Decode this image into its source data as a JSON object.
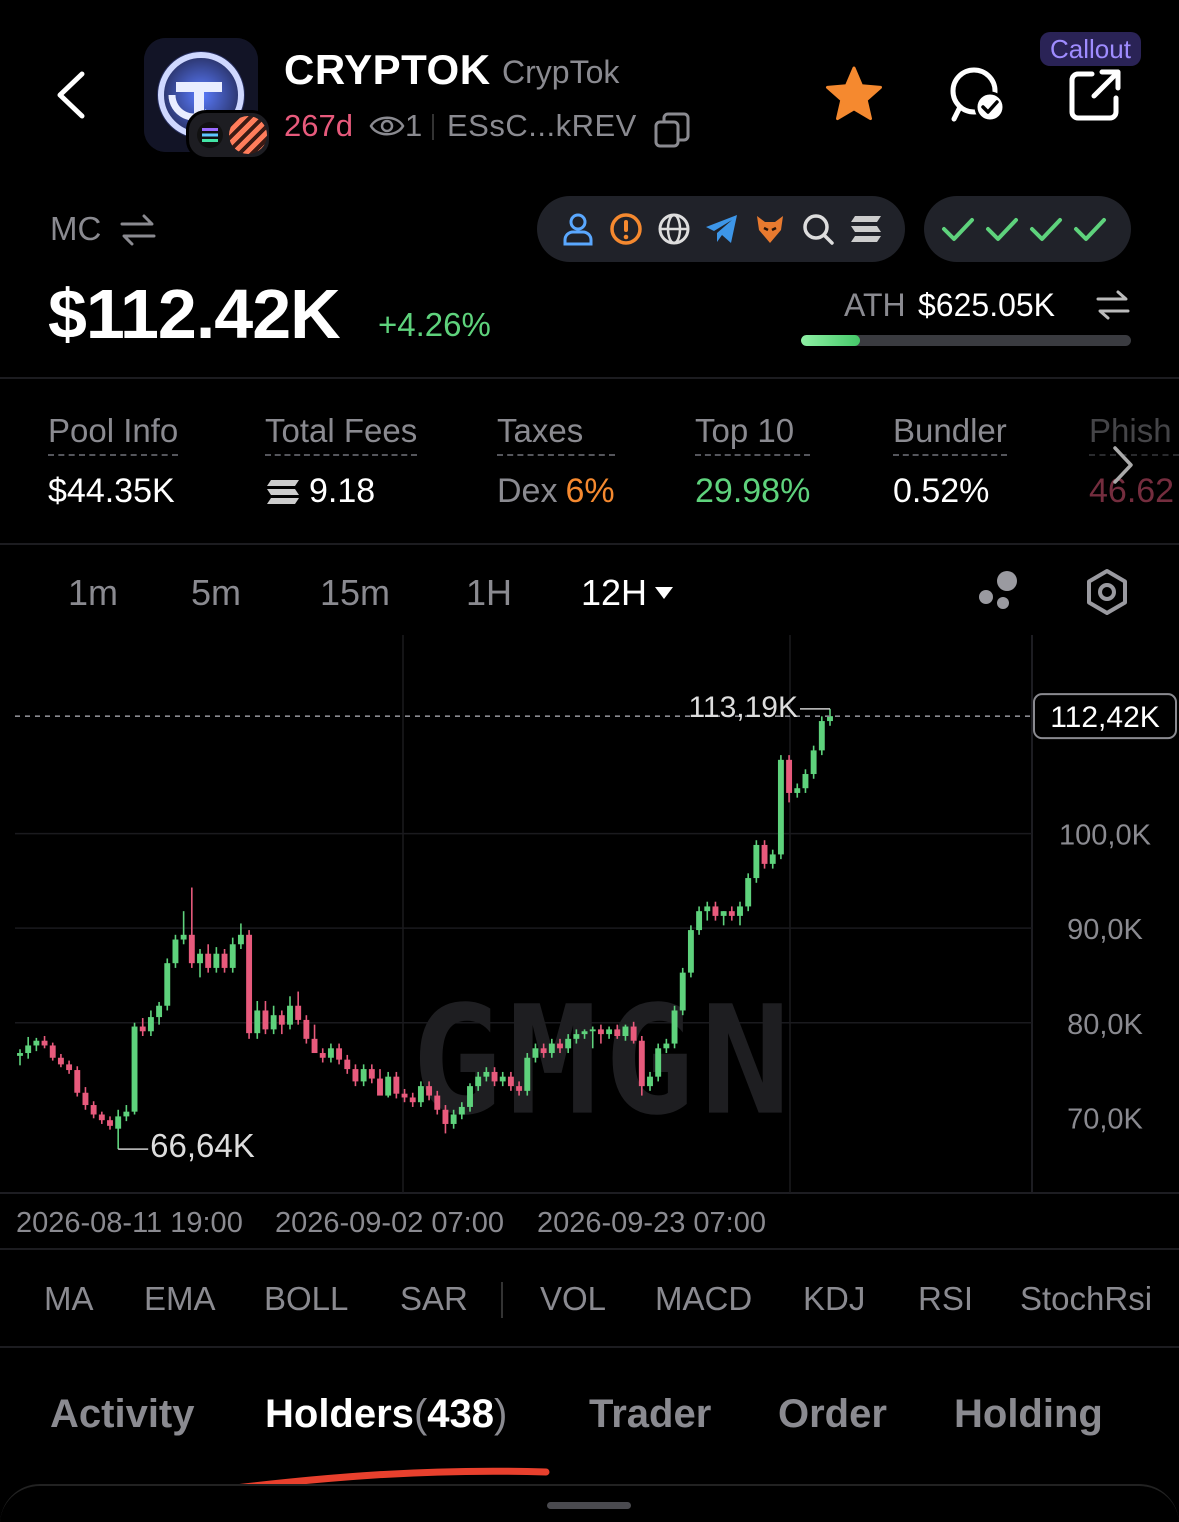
{
  "header": {
    "token_name": "CRYPTOK",
    "token_sub": "CrypTok",
    "age": "267d",
    "watch_count": "1",
    "address": "ESsC...kREV",
    "callout_label": "Callout"
  },
  "market": {
    "mc_label": "MC",
    "mc_value": "$112.42K",
    "mc_change": "+4.26%",
    "ath_label": "ATH",
    "ath_value": "$625.05K",
    "ath_progress": 0.18,
    "checks": "✓✓✓✓"
  },
  "social_icons": [
    "user-icon",
    "alert-icon",
    "globe-icon",
    "telegram-icon",
    "fox-icon",
    "search-icon",
    "solana-icon"
  ],
  "stats": [
    {
      "label": "Pool Info",
      "value": "$44.35K"
    },
    {
      "label": "Total Fees",
      "value": "9.18"
    },
    {
      "label": "Taxes",
      "value_prefix": "Dex",
      "value": "6%"
    },
    {
      "label": "Top 10",
      "value": "29.98%"
    },
    {
      "label": "Bundler",
      "value": "0.52%"
    },
    {
      "label": "Phish",
      "value": "46.62"
    }
  ],
  "timeframes": [
    "1m",
    "5m",
    "15m",
    "1H",
    "12H"
  ],
  "active_timeframe": "12H",
  "chart_data": {
    "type": "candlestick",
    "watermark": "GMGN",
    "y_ticks": [
      "100,0K",
      "90,0K",
      "80,0K",
      "70,0K"
    ],
    "x_ticks": [
      "2026-08-11 19:00",
      "2026-09-02 07:00",
      "2026-09-23 07:00"
    ],
    "current_price_label": "112,42K",
    "high_label": "113,19K",
    "low_label": "66,64K",
    "ylim": [
      62,
      121
    ],
    "candles": [
      [
        76.5,
        77.2,
        75.5,
        76.8
      ],
      [
        76.8,
        78.5,
        76.2,
        77.6
      ],
      [
        77.6,
        78.4,
        77.0,
        78.1
      ],
      [
        78.1,
        78.6,
        77.3,
        77.6
      ],
      [
        77.6,
        77.9,
        76.0,
        76.3
      ],
      [
        76.3,
        76.7,
        75.3,
        75.6
      ],
      [
        75.6,
        76.0,
        74.6,
        75.0
      ],
      [
        75.0,
        75.4,
        72.2,
        72.6
      ],
      [
        72.6,
        73.2,
        70.8,
        71.3
      ],
      [
        71.3,
        71.7,
        69.9,
        70.3
      ],
      [
        70.3,
        70.6,
        69.3,
        69.7
      ],
      [
        69.7,
        70.1,
        68.7,
        69.1
      ],
      [
        68.8,
        70.8,
        66.64,
        70.1
      ],
      [
        70.1,
        71.3,
        69.6,
        70.6
      ],
      [
        70.6,
        80.0,
        70.3,
        79.6
      ],
      [
        79.6,
        80.5,
        78.6,
        79.1
      ],
      [
        79.1,
        81.3,
        78.6,
        80.6
      ],
      [
        80.6,
        82.2,
        79.8,
        81.8
      ],
      [
        81.8,
        86.8,
        81.3,
        86.3
      ],
      [
        86.3,
        89.3,
        85.8,
        88.8
      ],
      [
        88.8,
        91.8,
        88.3,
        89.3
      ],
      [
        89.3,
        94.3,
        85.8,
        86.3
      ],
      [
        86.3,
        87.8,
        84.8,
        87.3
      ],
      [
        87.3,
        88.3,
        85.3,
        85.8
      ],
      [
        85.8,
        88.0,
        85.3,
        87.3
      ],
      [
        87.3,
        87.8,
        85.3,
        85.8
      ],
      [
        85.8,
        89.0,
        85.3,
        88.3
      ],
      [
        88.3,
        90.5,
        87.8,
        89.3
      ],
      [
        89.3,
        89.8,
        78.3,
        78.9
      ],
      [
        78.9,
        82.3,
        78.3,
        81.3
      ],
      [
        81.3,
        82.3,
        78.8,
        79.3
      ],
      [
        79.3,
        81.8,
        78.8,
        80.8
      ],
      [
        80.8,
        81.3,
        78.8,
        79.8
      ],
      [
        79.8,
        82.8,
        79.3,
        81.8
      ],
      [
        81.8,
        83.3,
        79.8,
        80.3
      ],
      [
        80.3,
        80.8,
        77.8,
        78.3
      ],
      [
        78.3,
        79.8,
        77.3,
        76.8
      ],
      [
        76.8,
        77.3,
        75.8,
        76.3
      ],
      [
        76.3,
        77.8,
        75.8,
        77.3
      ],
      [
        77.3,
        77.8,
        75.6,
        76.1
      ],
      [
        76.1,
        76.6,
        74.6,
        75.1
      ],
      [
        75.1,
        75.6,
        73.3,
        73.8
      ],
      [
        73.8,
        75.6,
        73.3,
        75.1
      ],
      [
        75.1,
        75.6,
        73.6,
        74.1
      ],
      [
        74.1,
        75.1,
        72.8,
        72.3
      ],
      [
        72.3,
        74.8,
        72.1,
        74.3
      ],
      [
        74.3,
        74.8,
        72.0,
        72.5
      ],
      [
        72.5,
        73.0,
        71.6,
        72.1
      ],
      [
        72.1,
        72.6,
        71.1,
        71.6
      ],
      [
        71.6,
        73.8,
        71.1,
        73.3
      ],
      [
        73.3,
        73.8,
        71.8,
        72.3
      ],
      [
        72.3,
        72.8,
        70.3,
        70.8
      ],
      [
        70.8,
        71.3,
        68.3,
        69.3
      ],
      [
        69.3,
        70.8,
        68.8,
        70.3
      ],
      [
        70.3,
        71.6,
        69.8,
        71.1
      ],
      [
        71.1,
        73.6,
        70.6,
        73.3
      ],
      [
        73.3,
        74.8,
        72.8,
        74.3
      ],
      [
        74.3,
        75.3,
        73.8,
        74.8
      ],
      [
        74.8,
        75.3,
        73.3,
        73.8
      ],
      [
        73.8,
        74.8,
        73.3,
        74.3
      ],
      [
        74.3,
        74.8,
        72.8,
        73.3
      ],
      [
        73.3,
        73.8,
        72.3,
        72.8
      ],
      [
        72.8,
        76.8,
        72.3,
        76.3
      ],
      [
        76.3,
        77.8,
        75.8,
        77.3
      ],
      [
        77.3,
        77.8,
        76.3,
        76.8
      ],
      [
        76.8,
        78.3,
        76.3,
        77.8
      ],
      [
        77.8,
        78.3,
        76.8,
        77.3
      ],
      [
        77.3,
        78.8,
        76.8,
        78.3
      ],
      [
        78.3,
        79.3,
        77.8,
        78.8
      ],
      [
        78.8,
        79.3,
        78.3,
        79.1
      ],
      [
        79.1,
        79.6,
        77.3,
        79.3
      ],
      [
        79.3,
        79.8,
        77.8,
        78.8
      ],
      [
        78.8,
        79.6,
        78.3,
        79.3
      ],
      [
        79.3,
        79.8,
        78.3,
        78.6
      ],
      [
        78.6,
        79.8,
        78.1,
        79.6
      ],
      [
        79.6,
        80.1,
        77.8,
        78.1
      ],
      [
        78.1,
        78.6,
        72.3,
        73.3
      ],
      [
        73.3,
        74.8,
        72.8,
        74.3
      ],
      [
        74.3,
        77.8,
        73.8,
        77.3
      ],
      [
        77.3,
        78.3,
        76.8,
        77.8
      ],
      [
        77.8,
        81.8,
        77.3,
        81.3
      ],
      [
        81.3,
        85.8,
        80.8,
        85.3
      ],
      [
        85.3,
        90.3,
        84.8,
        89.8
      ],
      [
        89.8,
        92.3,
        89.3,
        91.8
      ],
      [
        91.8,
        92.8,
        90.8,
        92.3
      ],
      [
        92.3,
        92.8,
        90.8,
        91.3
      ],
      [
        91.3,
        91.8,
        90.3,
        91.8
      ],
      [
        91.8,
        92.3,
        90.8,
        91.3
      ],
      [
        91.3,
        92.8,
        90.3,
        92.3
      ],
      [
        92.3,
        95.8,
        91.8,
        95.3
      ],
      [
        95.3,
        99.3,
        94.8,
        98.8
      ],
      [
        98.8,
        99.3,
        96.3,
        96.8
      ],
      [
        96.8,
        98.3,
        96.3,
        97.8
      ],
      [
        97.8,
        108.3,
        97.3,
        107.8
      ],
      [
        107.8,
        108.3,
        103.3,
        104.3
      ],
      [
        104.3,
        105.3,
        103.8,
        104.8
      ],
      [
        104.8,
        106.8,
        104.3,
        106.3
      ],
      [
        106.3,
        109.3,
        105.8,
        108.8
      ],
      [
        108.8,
        112.4,
        108.3,
        111.9
      ],
      [
        111.9,
        113.19,
        111.4,
        112.42
      ]
    ]
  },
  "indicators": [
    "MA",
    "EMA",
    "BOLL",
    "SAR",
    "VOL",
    "MACD",
    "KDJ",
    "RSI",
    "StochRsi"
  ],
  "tabs": {
    "activity": "Activity",
    "holders": "Holders",
    "holders_count": "438",
    "trader": "Trader",
    "order": "Order",
    "holding": "Holding"
  },
  "colors": {
    "up": "#5ed27c",
    "down": "#e75a7c",
    "accent_orange": "#f5892f",
    "callout_text": "#9f8cff",
    "annotation_red": "#e8402d"
  }
}
